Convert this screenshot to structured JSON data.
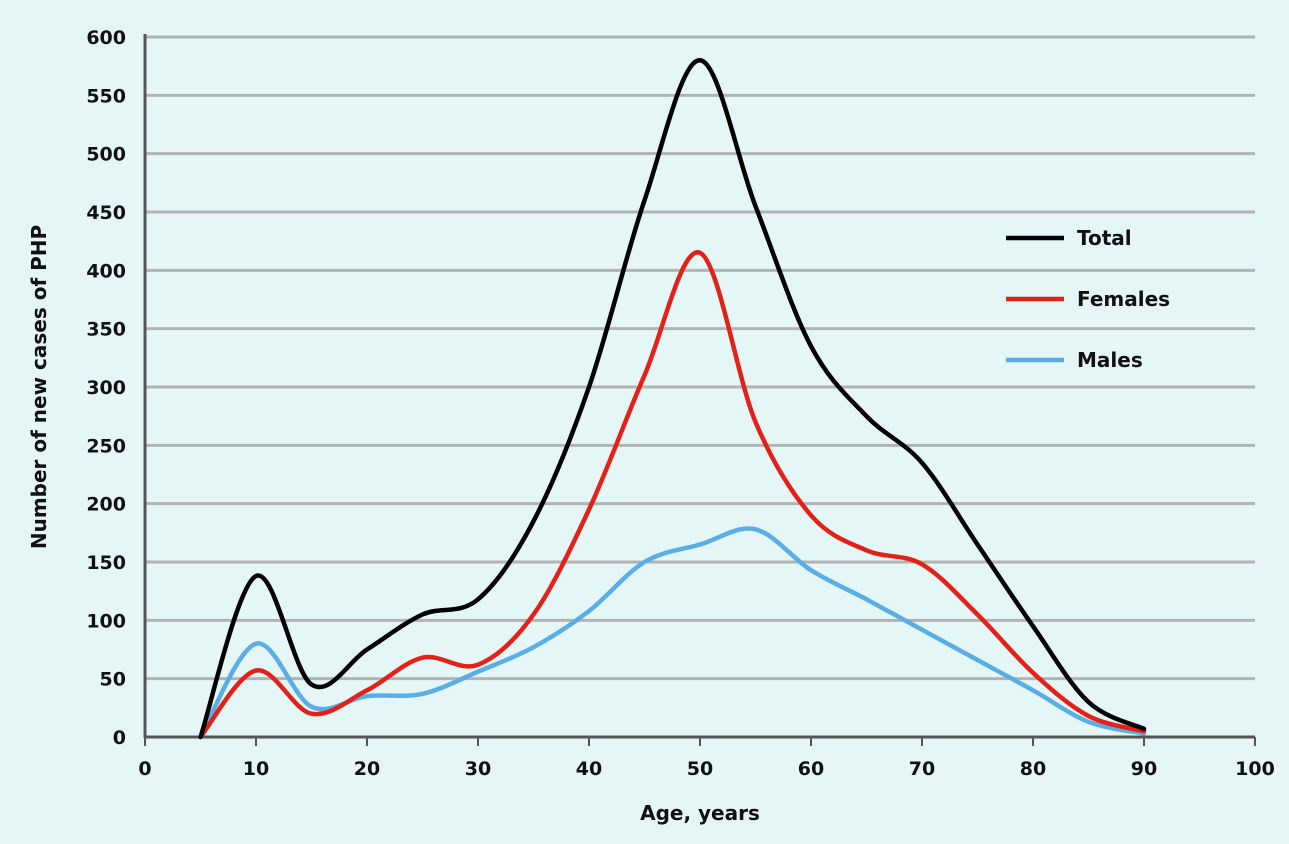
{
  "chart_data": {
    "type": "line",
    "xlabel": "Age, years",
    "ylabel": "Number of new cases of PHP",
    "xlim": [
      0,
      100
    ],
    "ylim": [
      0,
      600
    ],
    "x_ticks": [
      0,
      10,
      20,
      30,
      40,
      50,
      60,
      70,
      80,
      90,
      100
    ],
    "y_ticks": [
      0,
      50,
      100,
      150,
      200,
      250,
      300,
      350,
      400,
      450,
      500,
      550,
      600
    ],
    "grid": "horizontal",
    "legend_position": "right",
    "series": [
      {
        "name": "Total",
        "color": "#000000",
        "x": [
          5,
          10,
          15,
          20,
          25,
          30,
          35,
          40,
          45,
          50,
          55,
          60,
          65,
          70,
          75,
          80,
          85,
          90
        ],
        "y": [
          0,
          138,
          45,
          75,
          105,
          118,
          185,
          300,
          460,
          580,
          455,
          335,
          275,
          235,
          165,
          95,
          30,
          7
        ]
      },
      {
        "name": "Females",
        "color": "#e32119",
        "x": [
          5,
          10,
          15,
          20,
          25,
          30,
          35,
          40,
          45,
          50,
          55,
          60,
          65,
          70,
          75,
          80,
          85,
          90
        ],
        "y": [
          0,
          57,
          20,
          40,
          68,
          62,
          105,
          195,
          310,
          415,
          270,
          190,
          160,
          148,
          105,
          55,
          18,
          5
        ]
      },
      {
        "name": "Males",
        "color": "#5aaee6",
        "x": [
          5,
          10,
          15,
          20,
          25,
          30,
          35,
          40,
          45,
          50,
          55,
          60,
          65,
          70,
          75,
          80,
          85,
          90
        ],
        "y": [
          0,
          80,
          26,
          35,
          37,
          56,
          77,
          108,
          150,
          165,
          178,
          143,
          118,
          92,
          66,
          40,
          13,
          3
        ]
      }
    ]
  }
}
